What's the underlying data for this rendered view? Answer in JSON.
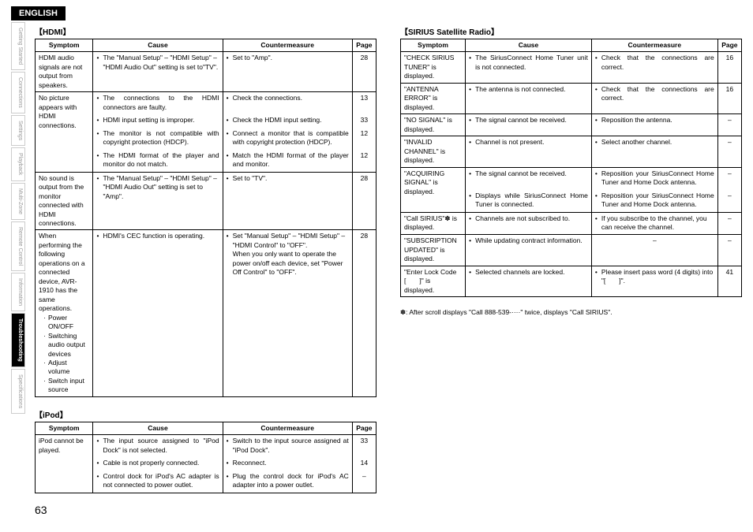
{
  "header": "ENGLISH",
  "sideTabs": [
    {
      "label": "Getting Started",
      "active": false
    },
    {
      "label": "Connections",
      "active": false
    },
    {
      "label": "Settings",
      "active": false
    },
    {
      "label": "Playback",
      "active": false
    },
    {
      "label": "Multi-Zone",
      "active": false
    },
    {
      "label": "Remote Control",
      "active": false
    },
    {
      "label": "Information",
      "active": false
    },
    {
      "label": "Troubleshooting",
      "active": true
    },
    {
      "label": "Specifications",
      "active": false
    }
  ],
  "pageNumber": "63",
  "tables": {
    "hdmi": {
      "title": "【HDMI】",
      "headers": [
        "Symptom",
        "Cause",
        "Countermeasure",
        "Page"
      ],
      "colWidths": [
        "17%",
        "38%",
        "38%",
        "7%"
      ],
      "rows": [
        {
          "symptom": "HDMI audio signals are not output from speakers.",
          "lines": [
            {
              "cause": "The \"Manual Setup\" – \"HDMI Setup\" – \"HDMI Audio Out\" setting is set to\"TV\".",
              "counter": "Set to \"Amp\".",
              "page": "28"
            }
          ]
        },
        {
          "symptom": "No picture appears with HDMI connections.",
          "lines": [
            {
              "cause": "The connections to the HDMI connectors are faulty.",
              "counter": "Check the connections.",
              "page": "13",
              "just": true
            },
            {
              "cause": "HDMI input setting is improper.",
              "counter": "Check the HDMI input setting.",
              "page": "33"
            },
            {
              "cause": "The monitor is not compatible with copyright protection (HDCP).",
              "counter": "Connect a monitor that is compatible with copyright protection (HDCP).",
              "page": "12",
              "just": true
            },
            {
              "cause": "The HDMI format of the player and monitor do not match.",
              "counter": "Match the HDMI format of the player and monitor.",
              "page": "12",
              "just": true
            }
          ]
        },
        {
          "symptom": "No sound is output from the monitor connected with HDMI connections.",
          "lines": [
            {
              "cause": "The \"Manual Setup\" – \"HDMI Setup\" – \"HDMI Audio Out\" setting is set to \"Amp\".",
              "counter": "Set to \"TV\".",
              "page": "28"
            }
          ]
        },
        {
          "symptom": "When performing the following operations on a connected device, AVR-1910 has the same operations.",
          "sub": [
            "Power ON/OFF",
            "Switching audio output devices",
            "Adjust volume",
            "Switch input source"
          ],
          "lines": [
            {
              "cause": "HDMI's CEC function is operating.",
              "causeJust": true,
              "counter": "Set \"Manual Setup\" – \"HDMI Setup\" – \"HDMI Control\" to \"OFF\".\nWhen you only want to operate the power on/off each device, set \"Power Off Control\" to \"OFF\".",
              "page": "28"
            }
          ]
        }
      ]
    },
    "ipod": {
      "title": "【iPod】",
      "headers": [
        "Symptom",
        "Cause",
        "Countermeasure",
        "Page"
      ],
      "colWidths": [
        "17%",
        "38%",
        "38%",
        "7%"
      ],
      "rows": [
        {
          "symptom": "iPod cannot be played.",
          "lines": [
            {
              "cause": "The input source assigned to \"iPod Dock\" is not selected.",
              "counter": "Switch to the input source assigned at \"iPod Dock\".",
              "page": "33",
              "just": true
            },
            {
              "cause": "Cable is not properly connected.",
              "counter": "Reconnect.",
              "page": "14"
            },
            {
              "cause": "Control dock for iPod's AC adapter is not connected to power outlet.",
              "counter": "Plug the control dock for iPod's AC adapter into a power outlet.",
              "page": "–",
              "just": true
            }
          ]
        }
      ]
    },
    "sirius": {
      "title": "【SIRIUS Satellite Radio】",
      "headers": [
        "Symptom",
        "Cause",
        "Countermeasure",
        "Page"
      ],
      "colWidths": [
        "19%",
        "37%",
        "37%",
        "7%"
      ],
      "rows": [
        {
          "symptom": "\"CHECK SIRIUS TUNER\" is displayed.",
          "lines": [
            {
              "cause": "The SiriusConnect Home Tuner unit is not connected.",
              "counter": "Check that the connections are correct.",
              "page": "16",
              "just": true
            }
          ]
        },
        {
          "symptom": "\"ANTENNA ERROR\" is displayed.",
          "lines": [
            {
              "cause": "The antenna is not connected.",
              "counter": "Check that the connections are correct.",
              "page": "16",
              "just": true
            }
          ]
        },
        {
          "symptom": "\"NO SIGNAL\" is displayed.",
          "lines": [
            {
              "cause": "The signal cannot be received.",
              "counter": "Reposition the antenna.",
              "page": "–"
            }
          ]
        },
        {
          "symptom": "\"INVALID CHANNEL\" is displayed.",
          "lines": [
            {
              "cause": "Channel is not present.",
              "counter": "Select another channel.",
              "page": "–"
            }
          ]
        },
        {
          "symptom": "\"ACQUIRING SIGNAL\" is displayed.",
          "lines": [
            {
              "cause": "The signal cannot be received.",
              "counter": "Reposition your SiriusConnect Home Tuner and Home Dock antenna.",
              "page": "–",
              "counterJust": true
            },
            {
              "cause": "Displays while SiriusConnect Home Tuner is connected.",
              "causeJust": true,
              "counter": "Reposition your SiriusConnect Home Tuner and Home Dock antenna.",
              "page": "–",
              "counterJust": true
            }
          ]
        },
        {
          "symptom": "\"Call SIRIUS\"✽ is displayed.",
          "lines": [
            {
              "cause": "Channels are not subscribed to.",
              "counter": "If you subscribe to the channel, you can receive the channel.",
              "page": "–"
            }
          ]
        },
        {
          "symptom": "\"SUBSCRIPTION UPDATED\" is displayed.",
          "lines": [
            {
              "cause": "While updating contract information.",
              "causeJust": true,
              "counter": "–",
              "page": "–",
              "centerCounter": true
            }
          ]
        },
        {
          "symptom": "\"Enter Lock Code [　　]\" is displayed.",
          "lines": [
            {
              "cause": "Selected channels are locked.",
              "counter": "Please insert pass word (4 digits) into \"[　　]\".",
              "page": "41"
            }
          ]
        }
      ],
      "footnote": "✽: After scroll displays \"Call 888-539-····\" twice, displays \"Call SIRIUS\"."
    }
  }
}
